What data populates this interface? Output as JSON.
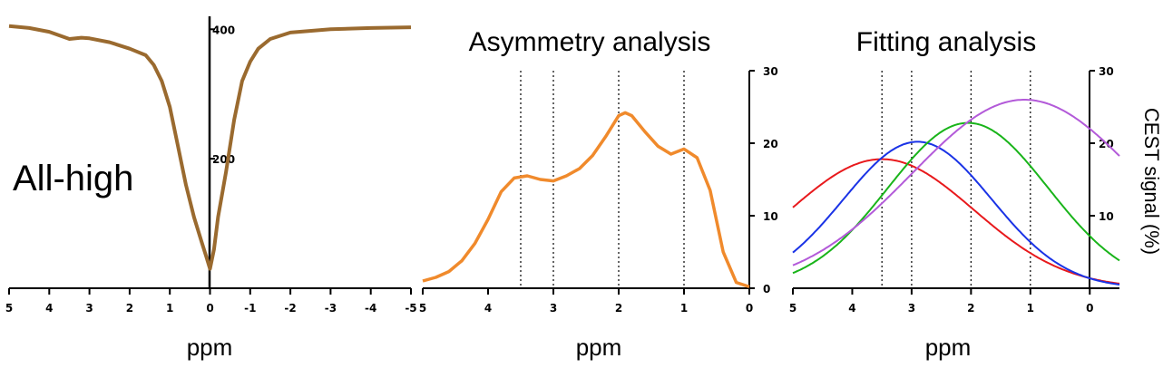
{
  "chart_data": [
    {
      "type": "line",
      "label": "All-high",
      "xlabel": "ppm",
      "xlim": [
        5,
        -5
      ],
      "x_ticks": [
        "5",
        "4",
        "3",
        "2",
        "1",
        "0",
        "-1",
        "-2",
        "-3",
        "-4",
        "-5"
      ],
      "y_ticks": [
        "200",
        "400"
      ],
      "ylim": [
        0,
        420
      ],
      "series": [
        {
          "color": "#9a6a2f",
          "x": [
            5,
            4.5,
            4,
            3.5,
            3.2,
            3,
            2.5,
            2,
            1.8,
            1.6,
            1.4,
            1.2,
            1.0,
            0.8,
            0.6,
            0.4,
            0.2,
            0.1,
            0,
            -0.1,
            -0.2,
            -0.4,
            -0.6,
            -0.8,
            -1.0,
            -1.2,
            -1.5,
            -2,
            -3,
            -4,
            -5
          ],
          "y": [
            405,
            402,
            396,
            385,
            387,
            386,
            380,
            370,
            365,
            360,
            345,
            320,
            280,
            220,
            160,
            110,
            70,
            50,
            30,
            60,
            110,
            180,
            260,
            320,
            350,
            370,
            385,
            395,
            400,
            402,
            403
          ]
        }
      ]
    },
    {
      "type": "line",
      "title": "Asymmetry analysis",
      "xlabel": "ppm",
      "xlim": [
        5,
        0
      ],
      "x_ticks": [
        "5",
        "4",
        "3",
        "2",
        "1",
        "0"
      ],
      "ylim": [
        0,
        30
      ],
      "y_ticks": [
        "0",
        "10",
        "20",
        "30"
      ],
      "vlines": [
        3.5,
        3,
        2,
        1
      ],
      "series": [
        {
          "color": "#f08a2c",
          "x": [
            5,
            4.8,
            4.6,
            4.4,
            4.2,
            4.0,
            3.8,
            3.6,
            3.4,
            3.2,
            3.0,
            2.8,
            2.6,
            2.4,
            2.2,
            2.0,
            1.9,
            1.8,
            1.6,
            1.4,
            1.2,
            1.0,
            0.8,
            0.6,
            0.4,
            0.2,
            0.0
          ],
          "y": [
            1.0,
            1.5,
            2.3,
            3.8,
            6.2,
            9.5,
            13.3,
            15.2,
            15.5,
            15.0,
            14.8,
            15.5,
            16.5,
            18.3,
            20.9,
            23.8,
            24.2,
            23.8,
            21.6,
            19.6,
            18.5,
            19.2,
            18.0,
            13.5,
            5.0,
            0.8,
            0.2
          ]
        }
      ]
    },
    {
      "type": "line",
      "title": "Fitting analysis",
      "xlabel": "ppm",
      "ylabel": "CEST signal (%)",
      "xlim": [
        5,
        -0.5
      ],
      "x_ticks": [
        "5",
        "4",
        "3",
        "2",
        "1",
        "0"
      ],
      "ylim": [
        0,
        30
      ],
      "y_ticks": [
        "10",
        "20",
        "30"
      ],
      "vlines": [
        3.5,
        3,
        2,
        1
      ],
      "series": [
        {
          "color": "#e8191c",
          "type": "gaussian",
          "center": 3.5,
          "amplitude": 17.8,
          "sigma": 1.55,
          "baseline": 0
        },
        {
          "color": "#1a33e6",
          "type": "gaussian",
          "center": 2.9,
          "amplitude": 20.2,
          "sigma": 1.25,
          "baseline": 0
        },
        {
          "color": "#19b41a",
          "type": "gaussian",
          "center": 2.05,
          "amplitude": 22.8,
          "sigma": 1.35,
          "baseline": 0
        },
        {
          "color": "#b35ad9",
          "type": "gaussian",
          "center": 1.1,
          "amplitude": 26.0,
          "sigma": 1.9,
          "baseline": 0
        }
      ]
    }
  ]
}
